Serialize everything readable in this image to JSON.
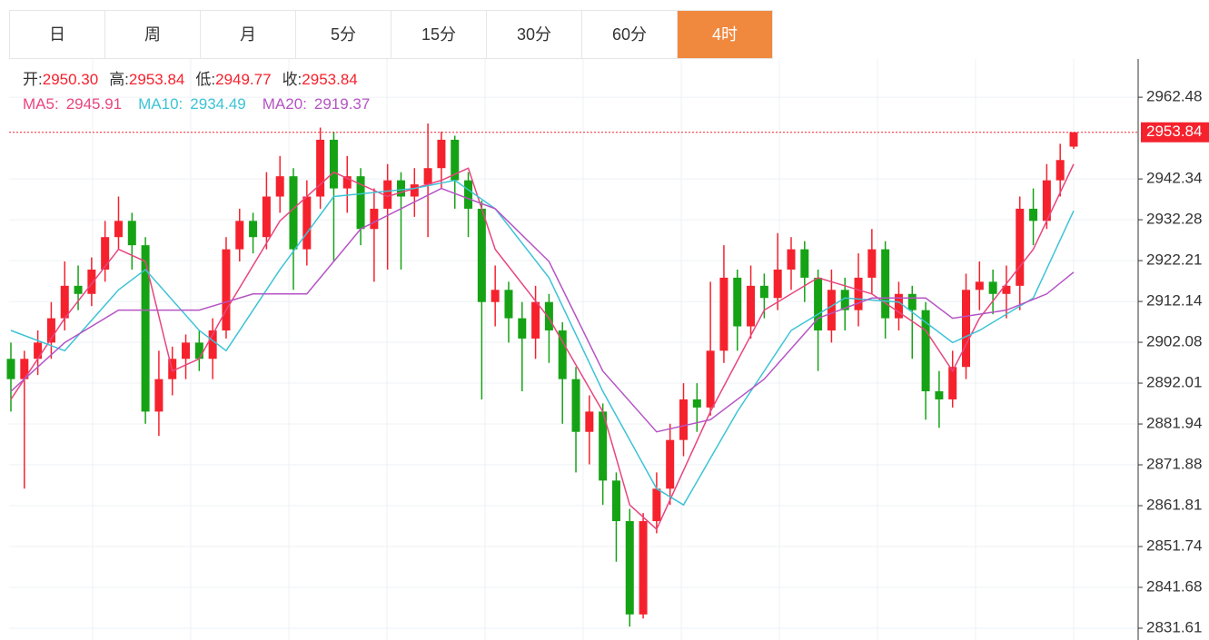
{
  "tabs": [
    "日",
    "周",
    "月",
    "5分",
    "15分",
    "30分",
    "60分",
    "4时"
  ],
  "active_tab": 7,
  "chart_data": {
    "type": "candlestick",
    "ohlc_labels": [
      "开:",
      "高:",
      "低:",
      "收:"
    ],
    "ohlc_value_labels": [
      "2950.30",
      "2953.84",
      "2949.77",
      "2953.84"
    ],
    "up_color": "#f5222d",
    "down_color": "#15a315",
    "ylim": [
      2828.7,
      2971.9
    ],
    "yticks": [
      2962.48,
      2942.34,
      2932.28,
      2922.21,
      2912.14,
      2902.08,
      2892.01,
      2881.94,
      2871.88,
      2861.81,
      2851.74,
      2841.68,
      2831.61
    ],
    "candles": [
      [
        2898,
        2902,
        2885,
        2893
      ],
      [
        2893,
        2900,
        2866,
        2898
      ],
      [
        2898,
        2905,
        2894,
        2902
      ],
      [
        2902,
        2912,
        2898,
        2908
      ],
      [
        2908,
        2922,
        2905,
        2916
      ],
      [
        2916,
        2921,
        2910,
        2914
      ],
      [
        2914,
        2923,
        2911,
        2920
      ],
      [
        2920,
        2932,
        2917,
        2928
      ],
      [
        2928,
        2938,
        2925,
        2932
      ],
      [
        2932,
        2934,
        2920,
        2926
      ],
      [
        2926,
        2928,
        2882,
        2885
      ],
      [
        2885,
        2900,
        2879,
        2893
      ],
      [
        2893,
        2901,
        2889,
        2898
      ],
      [
        2898,
        2904,
        2893,
        2902
      ],
      [
        2902,
        2905,
        2895,
        2898
      ],
      [
        2898,
        2908,
        2893,
        2905
      ],
      [
        2905,
        2928,
        2903,
        2925
      ],
      [
        2925,
        2935,
        2922,
        2932
      ],
      [
        2932,
        2934,
        2924,
        2928
      ],
      [
        2928,
        2944,
        2925,
        2938
      ],
      [
        2938,
        2948,
        2934,
        2943
      ],
      [
        2943,
        2945,
        2915,
        2925
      ],
      [
        2925,
        2942,
        2921,
        2938
      ],
      [
        2938,
        2955,
        2935,
        2952
      ],
      [
        2952,
        2954,
        2922,
        2940
      ],
      [
        2940,
        2948,
        2934,
        2943
      ],
      [
        2943,
        2945,
        2926,
        2930
      ],
      [
        2930,
        2940,
        2917,
        2935
      ],
      [
        2935,
        2946,
        2920,
        2942
      ],
      [
        2942,
        2944,
        2920,
        2938
      ],
      [
        2938,
        2945,
        2933,
        2941
      ],
      [
        2941,
        2956,
        2928,
        2945
      ],
      [
        2945,
        2954,
        2940,
        2952
      ],
      [
        2952,
        2953,
        2935,
        2942
      ],
      [
        2942,
        2944,
        2928,
        2935
      ],
      [
        2935,
        2937,
        2888,
        2912
      ],
      [
        2912,
        2921,
        2906,
        2915
      ],
      [
        2915,
        2917,
        2902,
        2908
      ],
      [
        2908,
        2912,
        2890,
        2903
      ],
      [
        2903,
        2916,
        2898,
        2912
      ],
      [
        2912,
        2914,
        2897,
        2905
      ],
      [
        2905,
        2907,
        2882,
        2893
      ],
      [
        2893,
        2896,
        2870,
        2880
      ],
      [
        2880,
        2889,
        2872,
        2885
      ],
      [
        2885,
        2887,
        2862,
        2868
      ],
      [
        2868,
        2870,
        2848,
        2858
      ],
      [
        2858,
        2861,
        2832,
        2835
      ],
      [
        2835,
        2860,
        2834,
        2858
      ],
      [
        2858,
        2870,
        2855,
        2866
      ],
      [
        2866,
        2882,
        2862,
        2878
      ],
      [
        2878,
        2892,
        2874,
        2888
      ],
      [
        2888,
        2892,
        2880,
        2886
      ],
      [
        2886,
        2917,
        2884,
        2900
      ],
      [
        2900,
        2926,
        2897,
        2918
      ],
      [
        2918,
        2920,
        2900,
        2906
      ],
      [
        2906,
        2921,
        2903,
        2916
      ],
      [
        2916,
        2919,
        2908,
        2913
      ],
      [
        2913,
        2929,
        2910,
        2920
      ],
      [
        2920,
        2928,
        2915,
        2925
      ],
      [
        2925,
        2927,
        2912,
        2918
      ],
      [
        2918,
        2920,
        2895,
        2905
      ],
      [
        2905,
        2920,
        2902,
        2915
      ],
      [
        2915,
        2918,
        2905,
        2910
      ],
      [
        2910,
        2924,
        2906,
        2918
      ],
      [
        2918,
        2930,
        2914,
        2925
      ],
      [
        2925,
        2927,
        2903,
        2908
      ],
      [
        2908,
        2917,
        2905,
        2914
      ],
      [
        2914,
        2916,
        2898,
        2910
      ],
      [
        2910,
        2912,
        2883,
        2890
      ],
      [
        2890,
        2895,
        2881,
        2888
      ],
      [
        2888,
        2900,
        2886,
        2896
      ],
      [
        2896,
        2919,
        2893,
        2915
      ],
      [
        2915,
        2922,
        2910,
        2917
      ],
      [
        2917,
        2920,
        2909,
        2914
      ],
      [
        2914,
        2921,
        2908,
        2916
      ],
      [
        2916,
        2938,
        2910,
        2935
      ],
      [
        2935,
        2940,
        2926,
        2932
      ],
      [
        2932,
        2946,
        2930,
        2942
      ],
      [
        2942,
        2951,
        2938,
        2947
      ],
      [
        2950.3,
        2953.84,
        2949.77,
        2953.84
      ]
    ],
    "ma_lines": [
      {
        "name": "MA5:",
        "color": "#e8457f",
        "last": 2945.91,
        "x": [
          0,
          4,
          8,
          10,
          12,
          14,
          16,
          20,
          24,
          28,
          32,
          34,
          36,
          40,
          44,
          46,
          48,
          52,
          56,
          60,
          64,
          68,
          70,
          72,
          76,
          79
        ],
        "values": [
          2888,
          2908,
          2925,
          2922,
          2895,
          2898,
          2910,
          2932,
          2944,
          2938,
          2942,
          2945,
          2925,
          2908,
          2885,
          2862,
          2856,
          2885,
          2910,
          2918,
          2914,
          2905,
          2895,
          2908,
          2925,
          2946
        ]
      },
      {
        "name": "MA10:",
        "color": "#3cc3d6",
        "last": 2934.49,
        "x": [
          0,
          4,
          8,
          10,
          14,
          16,
          20,
          24,
          30,
          33,
          36,
          40,
          44,
          48,
          50,
          54,
          58,
          62,
          66,
          70,
          72,
          76,
          79
        ],
        "values": [
          2905,
          2900,
          2915,
          2920,
          2905,
          2900,
          2920,
          2938,
          2940,
          2942,
          2935,
          2918,
          2890,
          2866,
          2862,
          2885,
          2905,
          2913,
          2912,
          2902,
          2905,
          2913,
          2934.49
        ]
      },
      {
        "name": "MA20:",
        "color": "#b554c4",
        "last": 2919.37,
        "x": [
          0,
          4,
          8,
          14,
          18,
          22,
          26,
          32,
          36,
          40,
          44,
          48,
          52,
          56,
          60,
          64,
          68,
          70,
          74,
          77,
          79
        ],
        "values": [
          2890,
          2902,
          2910,
          2910,
          2914,
          2914,
          2930,
          2940,
          2935,
          2922,
          2895,
          2880,
          2883,
          2893,
          2908,
          2913,
          2913,
          2908,
          2910,
          2914,
          2919.37
        ]
      }
    ]
  }
}
